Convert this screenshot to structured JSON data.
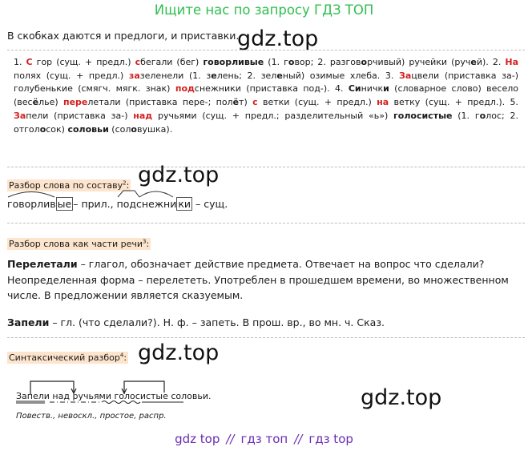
{
  "banner_top": "Ищите нас по запросу ГДЗ ТОП",
  "intro": "В скобках даются и предлоги, и приставки.",
  "watermark": "gdz.top",
  "answer": {
    "line1": [
      {
        "t": "1. ",
        "s": "n"
      },
      {
        "t": "С",
        "s": "r"
      },
      {
        "t": " гор (сущ. + предл.) ",
        "s": "n"
      },
      {
        "t": "с",
        "s": "r"
      },
      {
        "t": "бегали (бег) ",
        "s": "n"
      },
      {
        "t": "говорливые",
        "s": "b"
      },
      {
        "t": " (1. г",
        "s": "n"
      },
      {
        "t": "о",
        "s": "b"
      },
      {
        "t": "вор; 2. разгов",
        "s": "n"
      },
      {
        "t": "о",
        "s": "b"
      },
      {
        "t": "рчивый) ручейки (руч",
        "s": "n"
      },
      {
        "t": "е",
        "s": "b"
      },
      {
        "t": "й). 2. ",
        "s": "n"
      },
      {
        "t": "На",
        "s": "r"
      },
      {
        "t": " полях (сущ. + предл.) ",
        "s": "n"
      },
      {
        "t": "за",
        "s": "r"
      },
      {
        "t": "зеленели (1. з",
        "s": "n"
      },
      {
        "t": "е",
        "s": "b"
      },
      {
        "t": "лень; 2. зел",
        "s": "n"
      },
      {
        "t": "е",
        "s": "b"
      },
      {
        "t": "ный) озимые хлеба. 3. ",
        "s": "n"
      },
      {
        "t": "За",
        "s": "r"
      },
      {
        "t": "цвели (приставка за-) голубенькие (смягч. мягк. знак) ",
        "s": "n"
      },
      {
        "t": "под",
        "s": "r"
      },
      {
        "t": "снежники (приставка под-). 4. ",
        "s": "n"
      },
      {
        "t": "С",
        "s": "b"
      },
      {
        "t": "и",
        "s": "b"
      },
      {
        "t": "ничк",
        "s": "n"
      },
      {
        "t": "и",
        "s": "b"
      },
      {
        "t": " (словарное слово) весело (вес",
        "s": "n"
      },
      {
        "t": "ё",
        "s": "b"
      },
      {
        "t": "лье) ",
        "s": "n"
      },
      {
        "t": "пере",
        "s": "r"
      },
      {
        "t": "летали (приставка пере-; пол",
        "s": "n"
      },
      {
        "t": "ё",
        "s": "b"
      },
      {
        "t": "т) ",
        "s": "n"
      },
      {
        "t": "с",
        "s": "r"
      },
      {
        "t": " ветки (сущ. + предл.) ",
        "s": "n"
      },
      {
        "t": "на",
        "s": "r"
      },
      {
        "t": " ветку (сущ. + предл.). 5. ",
        "s": "n"
      },
      {
        "t": "За",
        "s": "r"
      },
      {
        "t": "пели (приставка за-) ",
        "s": "n"
      },
      {
        "t": "над",
        "s": "r"
      },
      {
        "t": " ручьями (сущ. + предл.; разделительный «ь») ",
        "s": "n"
      },
      {
        "t": "голосистые",
        "s": "b"
      },
      {
        "t": " (1. г",
        "s": "n"
      },
      {
        "t": "о",
        "s": "b"
      },
      {
        "t": "лос; 2. отгол",
        "s": "n"
      },
      {
        "t": "о",
        "s": "b"
      },
      {
        "t": "сок) ",
        "s": "n"
      },
      {
        "t": "соловьи",
        "s": "b"
      },
      {
        "t": " (сол",
        "s": "n"
      },
      {
        "t": "о",
        "s": "b"
      },
      {
        "t": "вушка).",
        "s": "n"
      }
    ]
  },
  "labels": {
    "composition": "Разбор слова по составу",
    "composition_sup": "2",
    "parts": "Разбор слова как части речи",
    "parts_sup": "3",
    "syntax": "Синтаксический разбор",
    "syntax_sup": "4"
  },
  "morph": {
    "word1_root": "говорлив",
    "word1_end": "ые",
    "word1_tail": "– прил., ",
    "word2_root": "подснежни",
    "word2_end": "ки",
    "word2_tail": " – сущ."
  },
  "pos1": {
    "word": "Перелетали",
    "text": " – глагол, обозначает действие предмета. Отвечает на вопрос что сделали? Неопределенная форма – перелететь. Употреблен в прошедшем времени, во множественном числе. В предложении является сказуемым."
  },
  "pos2": {
    "word": "Запели",
    "text": " – гл. (что сделали?). Н. ф. – запеть. В прош. вр., во мн. ч. Сказ."
  },
  "syntax": {
    "sentence": "Запели над ручьями голосистые соловьи.",
    "note": "Повеств., невоскл., простое, распр."
  },
  "banner_bottom": {
    "a": "gdz top",
    "sep": "//",
    "b": "гдз топ",
    "c": "гдз top"
  }
}
